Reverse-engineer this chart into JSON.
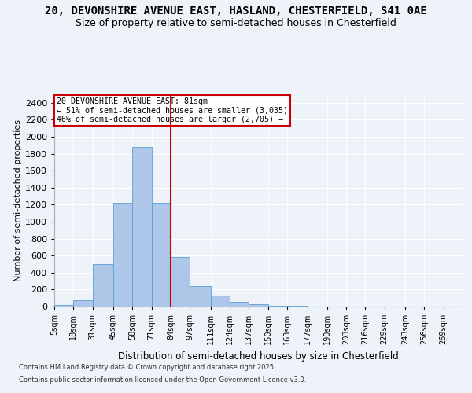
{
  "title1": "20, DEVONSHIRE AVENUE EAST, HASLAND, CHESTERFIELD, S41 0AE",
  "title2": "Size of property relative to semi-detached houses in Chesterfield",
  "xlabel": "Distribution of semi-detached houses by size in Chesterfield",
  "ylabel": "Number of semi-detached properties",
  "annotation_title": "20 DEVONSHIRE AVENUE EAST: 81sqm",
  "annotation_line1": "← 51% of semi-detached houses are smaller (3,035)",
  "annotation_line2": "46% of semi-detached houses are larger (2,705) →",
  "footer1": "Contains HM Land Registry data © Crown copyright and database right 2025.",
  "footer2": "Contains public sector information licensed under the Open Government Licence v3.0.",
  "bin_labels": [
    "5sqm",
    "18sqm",
    "31sqm",
    "45sqm",
    "58sqm",
    "71sqm",
    "84sqm",
    "97sqm",
    "111sqm",
    "124sqm",
    "137sqm",
    "150sqm",
    "163sqm",
    "177sqm",
    "190sqm",
    "203sqm",
    "216sqm",
    "229sqm",
    "243sqm",
    "256sqm",
    "269sqm"
  ],
  "bin_edges": [
    5,
    18,
    31,
    45,
    58,
    71,
    84,
    97,
    111,
    124,
    137,
    150,
    163,
    177,
    190,
    203,
    216,
    229,
    243,
    256,
    269,
    282
  ],
  "bar_heights": [
    15,
    75,
    500,
    1220,
    1880,
    1220,
    580,
    240,
    130,
    55,
    30,
    10,
    5,
    2,
    0,
    0,
    0,
    0,
    0,
    0,
    0
  ],
  "bar_color": "#aec6e8",
  "bar_edge_color": "#5a9fd4",
  "vline_color": "#cc0000",
  "vline_x": 84,
  "ylim": [
    0,
    2500
  ],
  "yticks": [
    0,
    200,
    400,
    600,
    800,
    1000,
    1200,
    1400,
    1600,
    1800,
    2000,
    2200,
    2400
  ],
  "bg_color": "#eef2f9",
  "annotation_box_color": "#ffffff",
  "annotation_box_edge": "#cc0000",
  "title_fontsize": 10,
  "subtitle_fontsize": 9
}
